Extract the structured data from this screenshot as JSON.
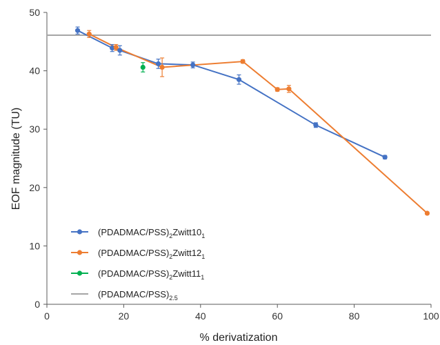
{
  "chart_data": {
    "type": "line",
    "xlabel": "% derivatization",
    "ylabel": "EOF magnitude (TU)",
    "xlim": [
      0,
      100
    ],
    "ylim": [
      0,
      50
    ],
    "x_ticks": [
      "0",
      "20",
      "40",
      "60",
      "80",
      "100"
    ],
    "y_ticks": [
      "0",
      "10",
      "20",
      "30",
      "40",
      "50"
    ],
    "grid": false,
    "legend_position": "bottom-left",
    "series": [
      {
        "name": "(PDADMAC/PSS)2Zwitt101",
        "legend": {
          "base": "(PDADMAC/PSS)",
          "sub1": "2",
          "mid": "Zwitt10",
          "sub2": "1"
        },
        "color": "#4472C4",
        "points": [
          {
            "x": 8,
            "y": 46.9,
            "err": 0.6
          },
          {
            "x": 17,
            "y": 43.9,
            "err": 0.6
          },
          {
            "x": 19,
            "y": 43.5,
            "err": 0.8
          },
          {
            "x": 29,
            "y": 41.2,
            "err": 0.8
          },
          {
            "x": 38,
            "y": 41.0,
            "err": 0.5
          },
          {
            "x": 50,
            "y": 38.5,
            "err": 0.8
          },
          {
            "x": 70,
            "y": 30.7,
            "err": 0.4
          },
          {
            "x": 88,
            "y": 25.2,
            "err": 0.3
          }
        ]
      },
      {
        "name": "(PDADMAC/PSS)2Zwitt121",
        "legend": {
          "base": "(PDADMAC/PSS)",
          "sub1": "2",
          "mid": "Zwitt12",
          "sub2": "1"
        },
        "color": "#ED7D31",
        "points": [
          {
            "x": 11,
            "y": 46.3,
            "err": 0.6
          },
          {
            "x": 18,
            "y": 44.0,
            "err": 0.5
          },
          {
            "x": 30,
            "y": 40.6,
            "err": 1.6
          },
          {
            "x": 51,
            "y": 41.6,
            "err": 0.3
          },
          {
            "x": 60,
            "y": 36.8,
            "err": 0.3
          },
          {
            "x": 63,
            "y": 36.9,
            "err": 0.6
          },
          {
            "x": 99,
            "y": 15.6,
            "err": 0.2
          }
        ]
      },
      {
        "name": "(PDADMAC/PSS)2Zwitt111",
        "legend": {
          "base": "(PDADMAC/PSS)",
          "sub1": "2",
          "mid": "Zwitt11",
          "sub2": "1"
        },
        "color": "#00B050",
        "points": [
          {
            "x": 25,
            "y": 40.6,
            "err": 0.8
          }
        ]
      },
      {
        "name": "(PDADMAC/PSS)2.5",
        "legend": {
          "base": "(PDADMAC/PSS)",
          "sub1": "2.5",
          "mid": "",
          "sub2": ""
        },
        "color": "#A5A5A5",
        "reference_y": 46.1
      }
    ]
  }
}
